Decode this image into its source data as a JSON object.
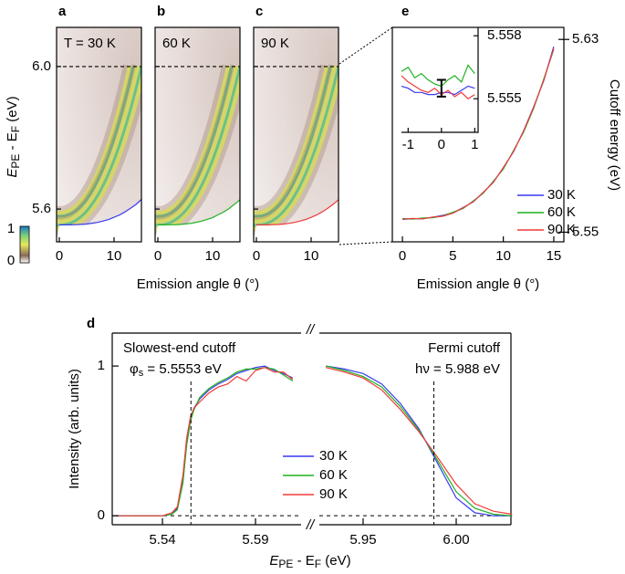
{
  "chart_data": [
    {
      "type": "heatmap",
      "panels": [
        {
          "label": "a",
          "annotation": "T = 30 K"
        },
        {
          "label": "b",
          "annotation": "60 K"
        },
        {
          "label": "c",
          "annotation": "90 K"
        }
      ],
      "xlim": [
        -0.5,
        15
      ],
      "xticks": [
        0,
        10
      ],
      "ylim": [
        5.508,
        6.11
      ],
      "yticks": [
        {
          "value": 6.0,
          "label": "6.0"
        },
        5.6
      ],
      "xlabel": "Emission angle θ (°)",
      "ylabel_parts": [
        "E",
        "PE",
        " - ",
        "E",
        "F",
        " (eV)"
      ],
      "colorbar_ticks": [
        1,
        0
      ]
    },
    {
      "type": "line",
      "label": "e",
      "xlim": [
        -1,
        16
      ],
      "xticks": [
        0,
        5,
        10,
        15
      ],
      "ylim": [
        5.546,
        5.635
      ],
      "yticks": [
        5.63,
        5.55
      ],
      "xlabel": "Emission angle θ (°)",
      "ylabel": "Cutoff energy (eV)",
      "legend": "lower right",
      "x": [
        0,
        1,
        2,
        3,
        4,
        5,
        6,
        7,
        8,
        9,
        10,
        11,
        12,
        13,
        14,
        15
      ],
      "series": [
        {
          "name": "30 K",
          "color": "#3a3af0",
          "values": [
            5.5553,
            5.5556,
            5.5556,
            5.5562,
            5.557,
            5.558,
            5.5602,
            5.5625,
            5.5665,
            5.5706,
            5.5768,
            5.5833,
            5.592,
            5.6019,
            5.6128,
            5.627
          ]
        },
        {
          "name": "60 K",
          "color": "#1fb21f",
          "values": [
            5.5557,
            5.5554,
            5.5559,
            5.556,
            5.5567,
            5.5583,
            5.5598,
            5.5629,
            5.5661,
            5.5711,
            5.5762,
            5.5838,
            5.5915,
            5.6013,
            5.6135,
            5.6258
          ]
        },
        {
          "name": "90 K",
          "color": "#f03a3a",
          "values": [
            5.5554,
            5.5557,
            5.5555,
            5.5563,
            5.5566,
            5.5579,
            5.5601,
            5.5626,
            5.5664,
            5.5707,
            5.5767,
            5.5834,
            5.5919,
            5.6017,
            5.613,
            5.6262
          ]
        }
      ],
      "inset": {
        "xlim": [
          -1.2,
          1.1
        ],
        "xticks": [
          -1,
          0,
          1
        ],
        "ylim": [
          5.5534,
          5.5584
        ],
        "yticks": [
          5.558,
          5.555
        ],
        "x": [
          -1.2,
          -1.0,
          -0.8,
          -0.6,
          -0.4,
          -0.2,
          0,
          0.2,
          0.4,
          0.6,
          0.8,
          1.0
        ],
        "series": [
          {
            "color": "#3a3af0",
            "values": [
              5.5556,
              5.5555,
              5.5553,
              5.5553,
              5.5552,
              5.5552,
              5.5553,
              5.5553,
              5.5552,
              5.5554,
              5.5556,
              5.5555
            ]
          },
          {
            "color": "#1fb21f",
            "values": [
              5.5563,
              5.5565,
              5.556,
              5.5562,
              5.5559,
              5.5557,
              5.5556,
              5.5559,
              5.5561,
              5.5558,
              5.5566,
              5.5562
            ]
          },
          {
            "color": "#f03a3a",
            "values": [
              5.5561,
              5.5558,
              5.5556,
              5.5554,
              5.5553,
              5.5555,
              5.5552,
              5.5554,
              5.5551,
              5.5553,
              5.555,
              5.5552
            ]
          }
        ],
        "errorbar": {
          "x": 0,
          "value": 5.5555,
          "error": 0.0004
        }
      }
    },
    {
      "type": "line",
      "label": "d",
      "ylim": [
        -0.06,
        1.22
      ],
      "yticks": [
        0,
        1
      ],
      "ylabel": "Intensity (arb. units)",
      "xlabel_parts": [
        "E",
        "PE",
        " - ",
        "E",
        "F",
        " (eV)"
      ],
      "axis_break": "//",
      "legend": "center",
      "annotations": [
        {
          "title": "Slowest-end cutoff",
          "parts": [
            "φ",
            "s",
            " = 5.5553 eV"
          ],
          "x": 5.5553
        },
        {
          "title": "Fermi cutoff",
          "parts": [
            "hν",
            " = 5.988 eV"
          ],
          "x": 5.988
        }
      ],
      "segments": [
        {
          "xlim": [
            5.513,
            5.6145
          ],
          "xticks": [
            5.54,
            5.59
          ],
          "x": [
            5.515,
            5.53,
            5.54,
            5.545,
            5.548,
            5.551,
            5.553,
            5.555,
            5.557,
            5.56,
            5.565,
            5.57,
            5.575,
            5.58,
            5.585,
            5.59,
            5.595,
            5.6,
            5.605,
            5.61
          ],
          "series": [
            {
              "name": "30 K",
              "color": "#3a3af0",
              "values": [
                0,
                0,
                0,
                0.01,
                0.05,
                0.25,
                0.5,
                0.65,
                0.72,
                0.78,
                0.84,
                0.88,
                0.91,
                0.95,
                0.97,
                0.99,
                1.0,
                0.97,
                0.95,
                0.92
              ]
            },
            {
              "name": "60 K",
              "color": "#1fb21f",
              "values": [
                0,
                0,
                0,
                0.01,
                0.04,
                0.22,
                0.47,
                0.63,
                0.71,
                0.79,
                0.85,
                0.89,
                0.92,
                0.96,
                0.98,
                0.98,
                0.99,
                0.98,
                0.94,
                0.9
              ]
            },
            {
              "name": "90 K",
              "color": "#f03a3a",
              "values": [
                0,
                0,
                0,
                0.02,
                0.06,
                0.27,
                0.52,
                0.66,
                0.72,
                0.76,
                0.82,
                0.86,
                0.88,
                0.93,
                0.9,
                0.97,
                0.99,
                0.96,
                0.96,
                0.91
              ]
            }
          ]
        },
        {
          "xlim": [
            5.9265,
            6.0294
          ],
          "xticks": [
            5.95,
            {
              "value": 6.0,
              "label": "6.00"
            }
          ],
          "x": [
            5.93,
            5.94,
            5.95,
            5.96,
            5.97,
            5.98,
            5.99,
            6.0,
            6.01,
            6.02,
            6.03
          ],
          "series": [
            {
              "color": "#3a3af0",
              "values": [
                1.0,
                0.98,
                0.95,
                0.88,
                0.75,
                0.58,
                0.35,
                0.12,
                0.02,
                0,
                0
              ]
            },
            {
              "color": "#1fb21f",
              "values": [
                1.0,
                0.97,
                0.93,
                0.86,
                0.73,
                0.57,
                0.37,
                0.16,
                0.05,
                0.01,
                0
              ]
            },
            {
              "color": "#f03a3a",
              "values": [
                0.99,
                0.96,
                0.92,
                0.84,
                0.71,
                0.56,
                0.39,
                0.21,
                0.08,
                0.03,
                0.01
              ]
            }
          ]
        }
      ]
    }
  ]
}
